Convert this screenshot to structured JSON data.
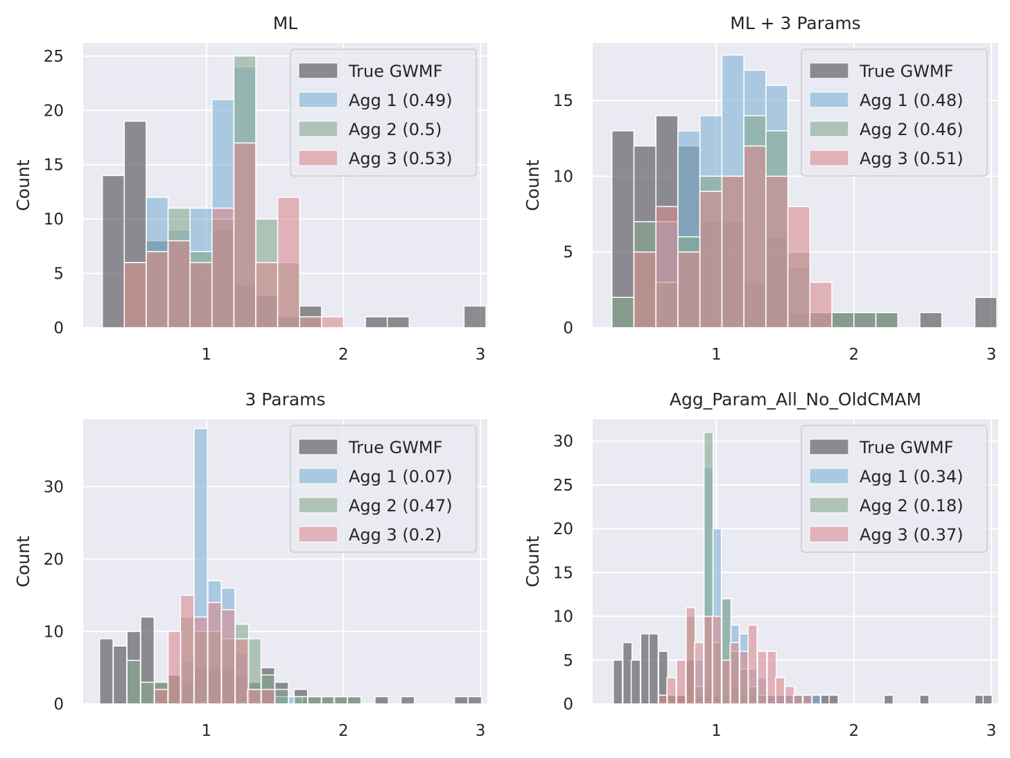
{
  "colors": {
    "true_gwmf": "#4a4a4f",
    "agg1": "#7fb3d5",
    "agg2": "#86a88f",
    "agg3": "#d98b90",
    "panel_bg": "#eaeaf2",
    "grid": "#ffffff"
  },
  "chart_data": [
    {
      "type": "bar",
      "title": "ML",
      "ylabel": "Count",
      "xlabel": "",
      "xlim": [
        0.1,
        3.05
      ],
      "ylim": [
        0,
        26.2
      ],
      "xticks": [
        "1",
        "2",
        "3"
      ],
      "yticks": [
        "0",
        "5",
        "10",
        "15",
        "20",
        "25"
      ],
      "legend": "top-right",
      "bin_width": 0.16,
      "series": [
        {
          "name": "True GWMF",
          "bins": [
            [
              0.24,
              14
            ],
            [
              0.4,
              19
            ],
            [
              0.56,
              8
            ],
            [
              0.72,
              8
            ],
            [
              0.88,
              6
            ],
            [
              1.04,
              9
            ],
            [
              1.2,
              4
            ],
            [
              1.36,
              3
            ],
            [
              1.52,
              1
            ],
            [
              1.68,
              2
            ],
            [
              2.16,
              1
            ],
            [
              2.32,
              1
            ],
            [
              2.88,
              2
            ]
          ]
        },
        {
          "name": "Agg 1 (0.49)",
          "bins": [
            [
              0.56,
              12
            ],
            [
              0.72,
              9
            ],
            [
              0.88,
              11
            ],
            [
              1.04,
              21
            ],
            [
              1.2,
              24
            ],
            [
              1.36,
              3
            ],
            [
              1.52,
              1
            ],
            [
              1.68,
              1
            ]
          ]
        },
        {
          "name": "Agg 2 (0.5)",
          "bins": [
            [
              0.4,
              6
            ],
            [
              0.56,
              7
            ],
            [
              0.72,
              11
            ],
            [
              0.88,
              7
            ],
            [
              1.04,
              10
            ],
            [
              1.2,
              25
            ],
            [
              1.36,
              10
            ],
            [
              1.52,
              6
            ],
            [
              1.68,
              1
            ]
          ]
        },
        {
          "name": "Agg 3 (0.53)",
          "bins": [
            [
              0.4,
              6
            ],
            [
              0.56,
              7
            ],
            [
              0.72,
              8
            ],
            [
              0.88,
              6
            ],
            [
              1.04,
              11
            ],
            [
              1.2,
              17
            ],
            [
              1.36,
              6
            ],
            [
              1.52,
              12
            ],
            [
              1.68,
              1
            ],
            [
              1.84,
              1
            ]
          ]
        }
      ]
    },
    {
      "type": "bar",
      "title": "ML + 3 Params",
      "ylabel": "Count",
      "xlabel": "",
      "xlim": [
        0.1,
        3.05
      ],
      "ylim": [
        0,
        18.8
      ],
      "xticks": [
        "1",
        "2",
        "3"
      ],
      "yticks": [
        "0",
        "5",
        "10",
        "15"
      ],
      "legend": "top-right",
      "bin_width": 0.16,
      "series": [
        {
          "name": "True GWMF",
          "bins": [
            [
              0.24,
              13
            ],
            [
              0.4,
              12
            ],
            [
              0.56,
              14
            ],
            [
              0.72,
              12
            ],
            [
              0.88,
              7
            ],
            [
              1.04,
              7
            ],
            [
              1.2,
              3
            ],
            [
              1.36,
              6
            ],
            [
              1.52,
              1
            ],
            [
              1.68,
              1
            ],
            [
              1.84,
              1
            ],
            [
              2.0,
              1
            ],
            [
              2.16,
              1
            ],
            [
              2.48,
              1
            ],
            [
              2.88,
              2
            ]
          ]
        },
        {
          "name": "Agg 1 (0.48)",
          "bins": [
            [
              0.56,
              7
            ],
            [
              0.72,
              13
            ],
            [
              0.88,
              14
            ],
            [
              1.04,
              18
            ],
            [
              1.2,
              17
            ],
            [
              1.36,
              16
            ],
            [
              1.52,
              4
            ],
            [
              1.68,
              1
            ]
          ]
        },
        {
          "name": "Agg 2 (0.46)",
          "bins": [
            [
              0.24,
              2
            ],
            [
              0.4,
              7
            ],
            [
              0.56,
              3
            ],
            [
              0.72,
              6
            ],
            [
              0.88,
              10
            ],
            [
              1.04,
              10
            ],
            [
              1.2,
              14
            ],
            [
              1.36,
              13
            ],
            [
              1.52,
              5
            ],
            [
              1.68,
              1
            ],
            [
              1.84,
              1
            ],
            [
              2.0,
              1
            ],
            [
              2.16,
              1
            ]
          ]
        },
        {
          "name": "Agg 3 (0.51)",
          "bins": [
            [
              0.4,
              5
            ],
            [
              0.56,
              8
            ],
            [
              0.72,
              5
            ],
            [
              0.88,
              9
            ],
            [
              1.04,
              10
            ],
            [
              1.2,
              12
            ],
            [
              1.36,
              10
            ],
            [
              1.52,
              8
            ],
            [
              1.68,
              3
            ]
          ]
        }
      ]
    },
    {
      "type": "bar",
      "title": "3 Params",
      "ylabel": "Count",
      "xlabel": "",
      "xlim": [
        0.1,
        3.05
      ],
      "ylim": [
        0,
        39.3
      ],
      "xticks": [
        "1",
        "2",
        "3"
      ],
      "yticks": [
        "0",
        "10",
        "20",
        "30"
      ],
      "legend": "top-right",
      "bin_width": 0.098,
      "series": [
        {
          "name": "True GWMF",
          "bins": [
            [
              0.22,
              9
            ],
            [
              0.32,
              8
            ],
            [
              0.42,
              10
            ],
            [
              0.52,
              12
            ],
            [
              0.62,
              3
            ],
            [
              0.72,
              4
            ],
            [
              0.81,
              3
            ],
            [
              0.91,
              5
            ],
            [
              1.01,
              5
            ],
            [
              1.11,
              5
            ],
            [
              1.21,
              4
            ],
            [
              1.3,
              3
            ],
            [
              1.4,
              5
            ],
            [
              1.5,
              3
            ],
            [
              1.64,
              2
            ],
            [
              1.74,
              1
            ],
            [
              1.84,
              1
            ],
            [
              1.93,
              1
            ],
            [
              2.03,
              1
            ],
            [
              2.23,
              1
            ],
            [
              2.42,
              1
            ],
            [
              2.81,
              1
            ],
            [
              2.91,
              1
            ]
          ]
        },
        {
          "name": "Agg 1 (0.07)",
          "bins": [
            [
              0.81,
              6
            ],
            [
              0.91,
              38
            ],
            [
              1.01,
              17
            ],
            [
              1.11,
              16
            ],
            [
              1.21,
              7
            ],
            [
              1.3,
              2
            ],
            [
              1.5,
              1
            ],
            [
              1.6,
              1
            ]
          ]
        },
        {
          "name": "Agg 2 (0.47)",
          "bins": [
            [
              0.42,
              6
            ],
            [
              0.52,
              3
            ],
            [
              0.62,
              3
            ],
            [
              0.72,
              4
            ],
            [
              0.81,
              12
            ],
            [
              0.91,
              10
            ],
            [
              1.01,
              10
            ],
            [
              1.11,
              9
            ],
            [
              1.21,
              11
            ],
            [
              1.3,
              9
            ],
            [
              1.4,
              4
            ],
            [
              1.5,
              2
            ],
            [
              1.64,
              1
            ],
            [
              1.74,
              1
            ],
            [
              1.84,
              1
            ],
            [
              1.93,
              1
            ],
            [
              2.03,
              1
            ]
          ]
        },
        {
          "name": "Agg 3 (0.2)",
          "bins": [
            [
              0.62,
              2
            ],
            [
              0.72,
              10
            ],
            [
              0.81,
              15
            ],
            [
              0.91,
              12
            ],
            [
              1.01,
              14
            ],
            [
              1.11,
              13
            ],
            [
              1.21,
              9
            ],
            [
              1.3,
              2
            ],
            [
              1.4,
              2
            ]
          ]
        }
      ]
    },
    {
      "type": "bar",
      "title": "Agg_Param_All_No_OldCMAM",
      "ylabel": "Count",
      "xlabel": "",
      "xlim": [
        0.1,
        3.05
      ],
      "ylim": [
        0,
        32.5
      ],
      "xticks": [
        "1",
        "2",
        "3"
      ],
      "yticks": [
        "0",
        "5",
        "10",
        "15",
        "20",
        "25",
        "30"
      ],
      "legend": "top-right",
      "bin_width": 0.066,
      "series": [
        {
          "name": "True GWMF",
          "bins": [
            [
              0.25,
              5
            ],
            [
              0.32,
              7
            ],
            [
              0.38,
              5
            ],
            [
              0.45,
              8
            ],
            [
              0.51,
              8
            ],
            [
              0.58,
              6
            ],
            [
              0.64,
              1
            ],
            [
              0.71,
              1
            ],
            [
              0.78,
              5
            ],
            [
              0.84,
              1
            ],
            [
              0.91,
              2
            ],
            [
              0.97,
              1
            ],
            [
              1.04,
              1
            ],
            [
              1.1,
              2
            ],
            [
              1.17,
              1
            ],
            [
              1.23,
              1
            ],
            [
              1.3,
              1
            ],
            [
              1.37,
              1
            ],
            [
              1.43,
              1
            ],
            [
              1.5,
              1
            ],
            [
              1.56,
              1
            ],
            [
              1.63,
              1
            ],
            [
              1.69,
              1
            ],
            [
              1.76,
              1
            ],
            [
              1.82,
              1
            ],
            [
              2.22,
              1
            ],
            [
              2.48,
              1
            ],
            [
              2.88,
              1
            ],
            [
              2.94,
              1
            ]
          ]
        },
        {
          "name": "Agg 1 (0.34)",
          "bins": [
            [
              0.84,
              5
            ],
            [
              0.91,
              27
            ],
            [
              0.97,
              20
            ],
            [
              1.04,
              12
            ],
            [
              1.1,
              9
            ],
            [
              1.17,
              8
            ],
            [
              1.23,
              4
            ],
            [
              1.3,
              3
            ],
            [
              1.37,
              1
            ],
            [
              1.43,
              1
            ],
            [
              1.5,
              1
            ],
            [
              1.56,
              1
            ],
            [
              1.63,
              1
            ],
            [
              1.69,
              1
            ]
          ]
        },
        {
          "name": "Agg 2 (0.18)",
          "bins": [
            [
              0.78,
              10
            ],
            [
              0.84,
              2
            ],
            [
              0.91,
              31
            ],
            [
              0.97,
              7
            ],
            [
              1.04,
              12
            ],
            [
              1.1,
              6
            ],
            [
              1.17,
              4
            ],
            [
              1.23,
              2
            ],
            [
              1.3,
              1
            ]
          ]
        },
        {
          "name": "Agg 3 (0.37)",
          "bins": [
            [
              0.58,
              1
            ],
            [
              0.64,
              3
            ],
            [
              0.71,
              5
            ],
            [
              0.78,
              11
            ],
            [
              0.84,
              7
            ],
            [
              0.91,
              10
            ],
            [
              0.97,
              10
            ],
            [
              1.04,
              5
            ],
            [
              1.1,
              7
            ],
            [
              1.17,
              6
            ],
            [
              1.23,
              9
            ],
            [
              1.3,
              6
            ],
            [
              1.37,
              6
            ],
            [
              1.43,
              3
            ],
            [
              1.5,
              2
            ],
            [
              1.56,
              1
            ],
            [
              1.63,
              1
            ]
          ]
        }
      ]
    }
  ]
}
